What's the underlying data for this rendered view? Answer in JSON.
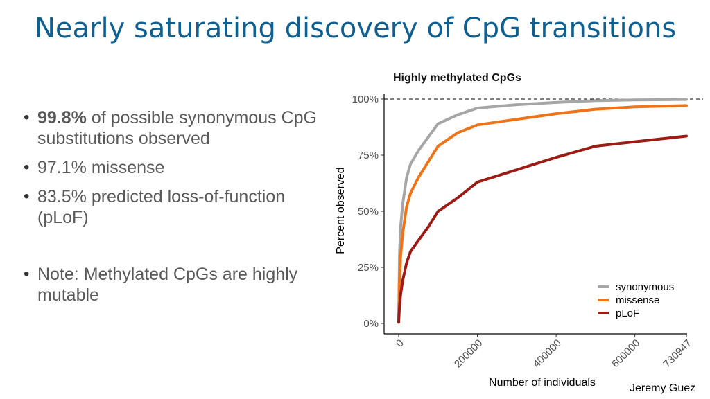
{
  "slide": {
    "title": "Nearly saturating discovery of CpG transitions",
    "credit": "Jeremy Guez"
  },
  "bullets": [
    {
      "bold": "99.8%",
      "text": " of possible synonymous CpG substitutions observed"
    },
    {
      "text": "97.1% missense"
    },
    {
      "text": "83.5% predicted loss-of-function (pLoF)"
    },
    {
      "text": "Note: Methylated CpGs are highly mutable"
    }
  ],
  "chart_data": {
    "type": "line",
    "title": "Highly methylated CpGs",
    "xlabel": "Number of individuals",
    "ylabel": "Percent observed",
    "xlim": [
      0,
      730947
    ],
    "ylim": [
      0,
      100
    ],
    "x_ticks": [
      0,
      200000,
      400000,
      600000,
      730947
    ],
    "x_tick_labels": [
      "0",
      "200000",
      "400000",
      "600000",
      "730947"
    ],
    "y_ticks": [
      0,
      25,
      50,
      75,
      100
    ],
    "y_tick_labels": [
      "0%",
      "25%",
      "50%",
      "75%",
      "100%"
    ],
    "reference_line": {
      "y": 100,
      "style": "dashed"
    },
    "grid": false,
    "legend_position": "bottom-right",
    "series": [
      {
        "name": "synonymous",
        "color": "#a6a6a6",
        "x": [
          0,
          2000,
          5000,
          10000,
          20000,
          30000,
          50000,
          75000,
          100000,
          150000,
          200000,
          300000,
          400000,
          500000,
          600000,
          730947
        ],
        "y": [
          1,
          30,
          43,
          53,
          65,
          71,
          77,
          83,
          89,
          93,
          96,
          97.5,
          98.5,
          99.3,
          99.6,
          99.8
        ]
      },
      {
        "name": "missense",
        "color": "#f07318",
        "x": [
          0,
          2000,
          5000,
          10000,
          20000,
          30000,
          50000,
          75000,
          100000,
          150000,
          200000,
          300000,
          400000,
          500000,
          600000,
          730947
        ],
        "y": [
          1,
          18,
          30,
          40,
          52,
          58,
          65,
          72,
          79,
          85,
          88.5,
          91,
          93.5,
          95.5,
          96.5,
          97.1
        ]
      },
      {
        "name": "pLoF",
        "color": "#9b1c14",
        "x": [
          0,
          2000,
          5000,
          10000,
          20000,
          30000,
          50000,
          75000,
          100000,
          150000,
          200000,
          300000,
          400000,
          500000,
          600000,
          730947
        ],
        "y": [
          0.5,
          7,
          13,
          19,
          27,
          32,
          37,
          43,
          50,
          56,
          63,
          68.5,
          74,
          79,
          81,
          83.5
        ]
      }
    ]
  }
}
